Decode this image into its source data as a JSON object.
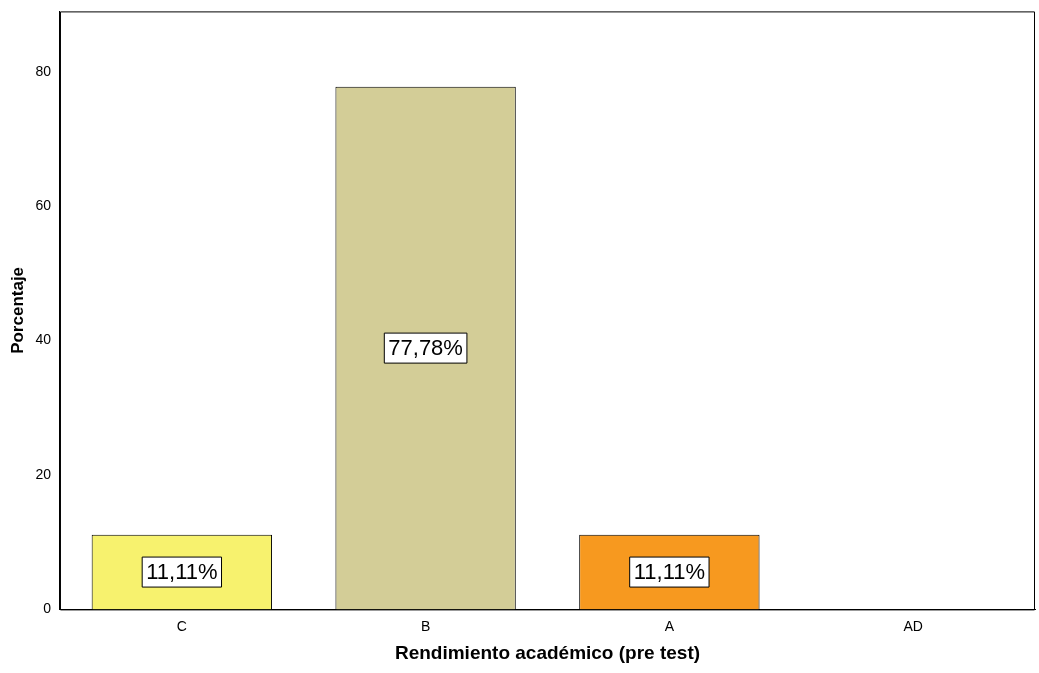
{
  "chart_data": {
    "type": "bar",
    "xlabel": "Rendimiento académico (pre test)",
    "ylabel": "Porcentaje",
    "categories": [
      "C",
      "B",
      "A",
      "AD"
    ],
    "values": [
      11.11,
      77.78,
      11.11,
      0
    ],
    "colors": [
      "#f7f26e",
      "#d3cd97",
      "#f7991f",
      "#cccccc"
    ],
    "value_labels": [
      "11,11%",
      "77,78%",
      "11,11%",
      null
    ],
    "ylim": [
      0,
      89
    ],
    "yticks": [
      0,
      20,
      40,
      60,
      80
    ],
    "grid": false,
    "legend": false
  }
}
